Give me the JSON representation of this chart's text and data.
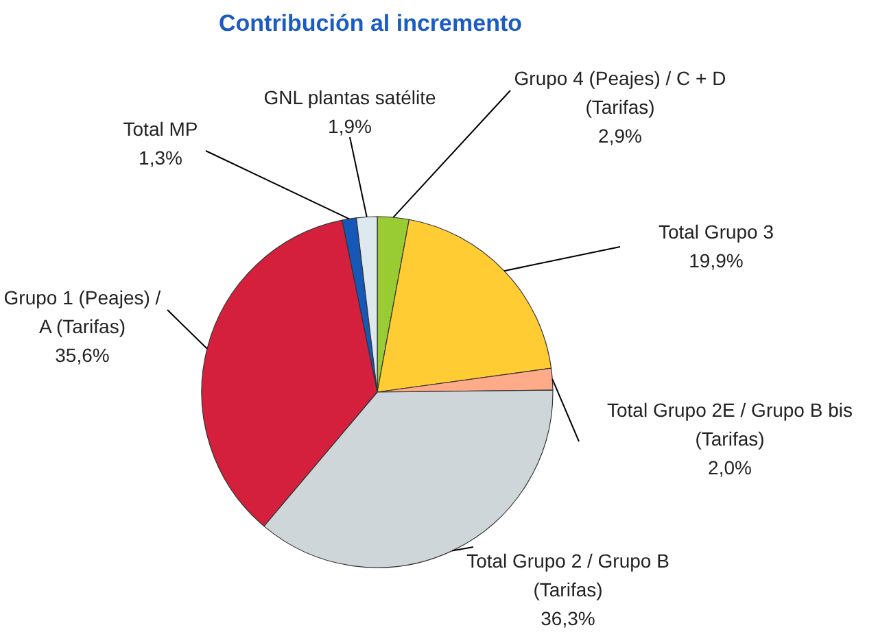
{
  "chart_data": {
    "type": "pie",
    "title": "Contribución al incremento",
    "categories": [
      "Grupo 4 (Peajes) / C + D (Tarifas)",
      "Total Grupo 3",
      "Total Grupo 2E / Grupo B bis (Tarifas)",
      "Total Grupo 2 / Grupo B (Tarifas)",
      "Grupo 1 (Peajes) / A (Tarifas)",
      "Total MP",
      "GNL plantas satélite"
    ],
    "values": [
      2.9,
      19.9,
      2.0,
      36.3,
      35.6,
      1.3,
      1.9
    ],
    "colors": [
      "#99cc33",
      "#ffcc33",
      "#ffaa88",
      "#cfd6d9",
      "#d4203c",
      "#1558b8",
      "#dde9ef"
    ],
    "value_labels": [
      "2,9%",
      "19,9%",
      "2,0%",
      "36,3%",
      "35,6%",
      "1,3%",
      "1,9%"
    ]
  }
}
